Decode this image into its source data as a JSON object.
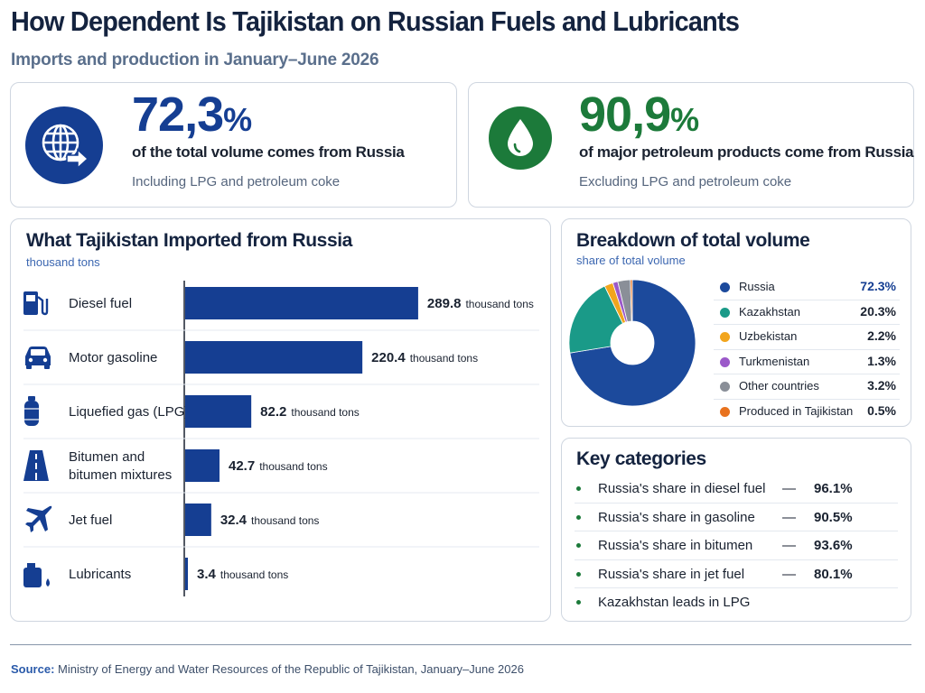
{
  "header": {
    "title": "How Dependent Is Tajikistan on Russian Fuels and Lubricants",
    "subtitle": "Imports and production in January–June 2026"
  },
  "stats": [
    {
      "value": "72,3",
      "unit": "%",
      "desc": "of the total volume comes from Russia",
      "note": "Including LPG and petroleum coke",
      "icon": "globe-arrow-icon",
      "color": "#153e92"
    },
    {
      "value": "90,9",
      "unit": "%",
      "desc": "of major petroleum products come from Russia",
      "note": "Excluding LPG and petroleum coke",
      "icon": "oil-drop-icon",
      "color": "#1c7a3a"
    }
  ],
  "imports": {
    "title": "What Tajikistan Imported from Russia",
    "unit_label": "thousand tons",
    "value_suffix": "thousand tons"
  },
  "breakdown": {
    "title": "Breakdown of total volume",
    "subtitle": "share of total volume"
  },
  "key": {
    "title": "Key categories",
    "items": [
      {
        "text": "Russia's share in diesel fuel",
        "dash": "—",
        "value": "96.1%"
      },
      {
        "text": "Russia's share in gasoline",
        "dash": "—",
        "value": "90.5%"
      },
      {
        "text": "Russia's share in bitumen",
        "dash": "—",
        "value": "93.6%"
      },
      {
        "text": "Russia's share in jet fuel",
        "dash": "—",
        "value": "80.1%"
      },
      {
        "text": "Kazakhstan leads in LPG",
        "dash": "",
        "value": ""
      }
    ]
  },
  "footer": {
    "source_label": "Source:",
    "source_text": "Ministry of Energy and Water Resources of the Republic of Tajikistan, January–June 2026"
  },
  "chart_data": [
    {
      "type": "bar",
      "orientation": "horizontal",
      "title": "What Tajikistan Imported from Russia",
      "xlabel": "thousand tons",
      "categories": [
        "Diesel fuel",
        "Motor gasoline",
        "Liquefied gas (LPG)",
        "Bitumen and bitumen mixtures",
        "Jet fuel",
        "Lubricants"
      ],
      "label_lines": [
        [
          "Diesel fuel"
        ],
        [
          "Motor gasoline"
        ],
        [
          "Liquefied gas (LPG)"
        ],
        [
          "Bitumen and",
          "bitumen mixtures"
        ],
        [
          "Jet fuel"
        ],
        [
          "Lubricants"
        ]
      ],
      "icons": [
        "fuel-pump-icon",
        "car-icon",
        "gas-cylinder-icon",
        "road-icon",
        "airplane-icon",
        "oil-can-icon"
      ],
      "values": [
        289.8,
        220.4,
        82.2,
        42.7,
        32.4,
        3.4
      ],
      "bar_color": "#153e92",
      "xlim": [
        0,
        300
      ]
    },
    {
      "type": "pie",
      "donut": true,
      "title": "Breakdown of total volume",
      "subtitle": "share of total volume",
      "labels": [
        "Russia",
        "Kazakhstan",
        "Uzbekistan",
        "Turkmenistan",
        "Other countries",
        "Produced in Tajikistan"
      ],
      "values": [
        72.3,
        20.3,
        2.2,
        1.3,
        3.2,
        0.5
      ],
      "display": [
        "72.3%",
        "20.3%",
        "2.2%",
        "1.3%",
        "3.2%",
        "0.5%"
      ],
      "colors": [
        "#1c4a9c",
        "#1a9a88",
        "#f2a51d",
        "#9b59c9",
        "#8a8f98",
        "#e8721e"
      ]
    }
  ]
}
